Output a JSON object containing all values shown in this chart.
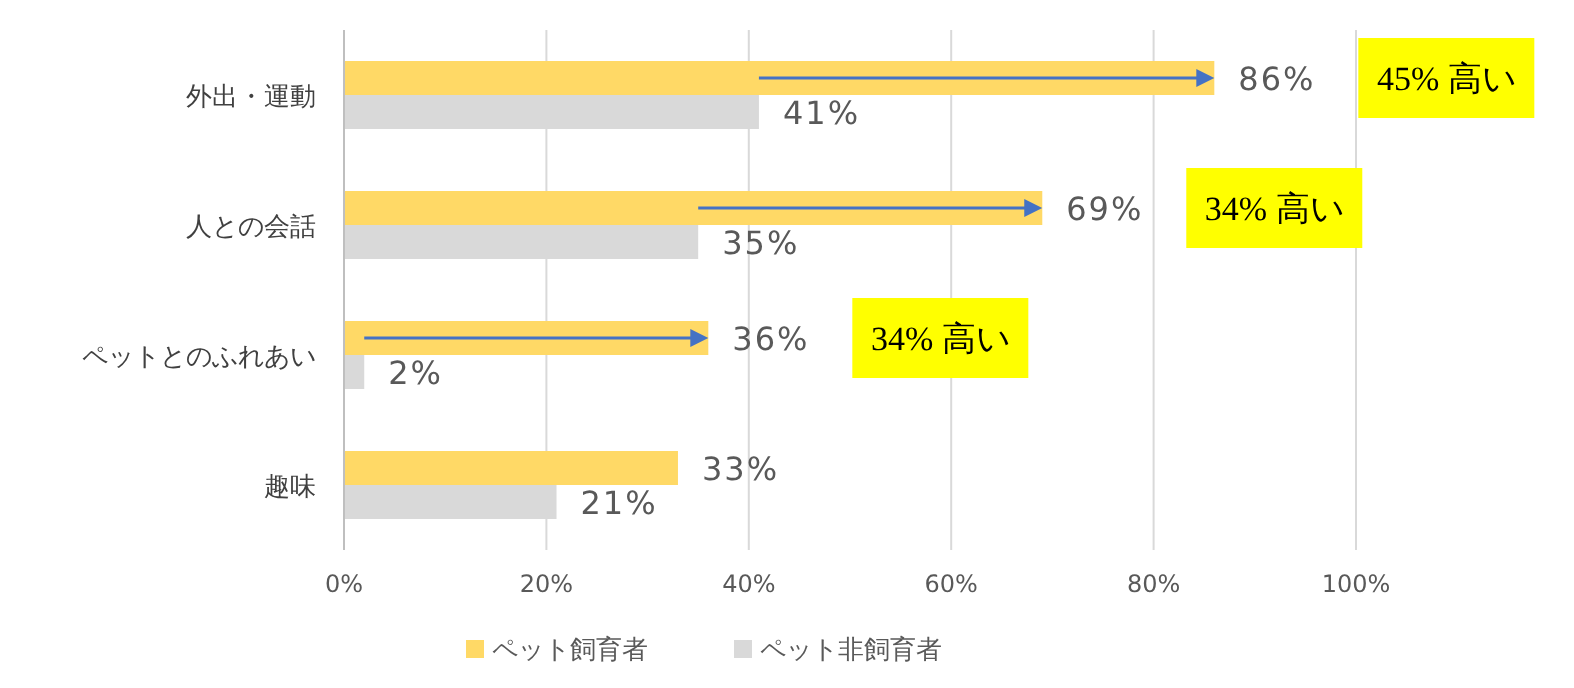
{
  "chart_data": {
    "type": "bar",
    "orientation": "horizontal",
    "categories": [
      "外出・運動",
      "人との会話",
      "ペットとのふれあい",
      "趣味"
    ],
    "series": [
      {
        "name": "ペット飼育者",
        "color": "#ffd966",
        "values": [
          86,
          69,
          36,
          33
        ]
      },
      {
        "name": "ペット非飼育者",
        "color": "#d9d9d9",
        "values": [
          41,
          35,
          2,
          21
        ]
      }
    ],
    "xlim": [
      0,
      100
    ],
    "xticks": [
      {
        "value": 0,
        "label": "0%"
      },
      {
        "value": 20,
        "label": "20%"
      },
      {
        "value": 40,
        "label": "40%"
      },
      {
        "value": 60,
        "label": "60%"
      },
      {
        "value": 80,
        "label": "80%"
      },
      {
        "value": 100,
        "label": "100%"
      }
    ],
    "grid": "x",
    "legend": "bottom",
    "value_labels": [
      [
        "86%",
        "69%",
        "36%",
        "33%"
      ],
      [
        "41%",
        "35%",
        "2%",
        "21%"
      ]
    ],
    "annotations": [
      "45% 高い",
      "34% 高い",
      "34% 高い"
    ]
  }
}
